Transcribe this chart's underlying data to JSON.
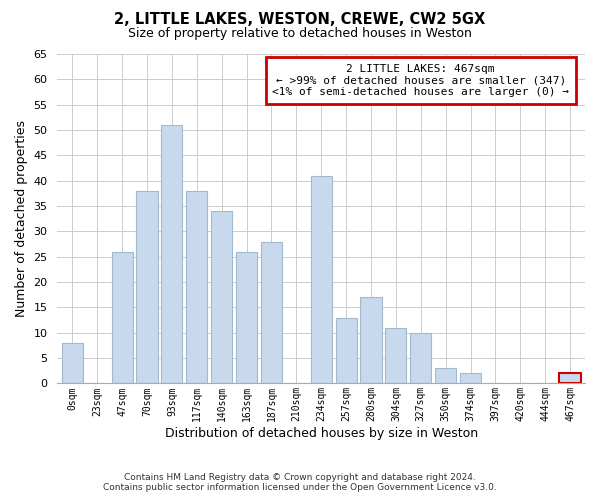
{
  "title": "2, LITTLE LAKES, WESTON, CREWE, CW2 5GX",
  "subtitle": "Size of property relative to detached houses in Weston",
  "xlabel": "Distribution of detached houses by size in Weston",
  "ylabel": "Number of detached properties",
  "bar_labels": [
    "0sqm",
    "23sqm",
    "47sqm",
    "70sqm",
    "93sqm",
    "117sqm",
    "140sqm",
    "163sqm",
    "187sqm",
    "210sqm",
    "234sqm",
    "257sqm",
    "280sqm",
    "304sqm",
    "327sqm",
    "350sqm",
    "374sqm",
    "397sqm",
    "420sqm",
    "444sqm",
    "467sqm"
  ],
  "bar_values": [
    8,
    0,
    26,
    38,
    51,
    38,
    34,
    26,
    28,
    0,
    41,
    13,
    17,
    11,
    10,
    3,
    2,
    0,
    0,
    0,
    2
  ],
  "bar_color": "#c8d9ed",
  "bar_edge_color": "#a0b8d0",
  "highlight_index": 20,
  "highlight_edge_color": "#cc0000",
  "annotation_title": "2 LITTLE LAKES: 467sqm",
  "annotation_line1": "← >99% of detached houses are smaller (347)",
  "annotation_line2": "<1% of semi-detached houses are larger (0) →",
  "annotation_box_color": "#ffffff",
  "annotation_border_color": "#cc0000",
  "ylim": [
    0,
    65
  ],
  "yticks": [
    0,
    5,
    10,
    15,
    20,
    25,
    30,
    35,
    40,
    45,
    50,
    55,
    60,
    65
  ],
  "footer_line1": "Contains HM Land Registry data © Crown copyright and database right 2024.",
  "footer_line2": "Contains public sector information licensed under the Open Government Licence v3.0.",
  "bg_color": "#ffffff",
  "grid_color": "#cccccc"
}
